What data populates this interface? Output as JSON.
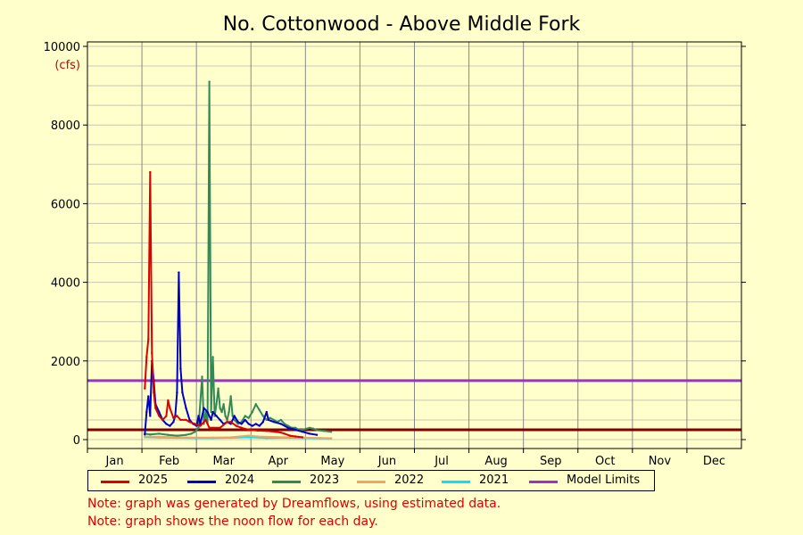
{
  "chart_data": {
    "type": "line",
    "title": "No. Cottonwood - Above Middle Fork",
    "y_unit": "(cfs)",
    "ylim": [
      0,
      10000
    ],
    "y_ticks": [
      0,
      2000,
      4000,
      6000,
      8000,
      10000
    ],
    "xlabel": "",
    "ylabel": "",
    "grid": true,
    "legend_placement": "bottom",
    "x_categories": [
      "Jan",
      "Feb",
      "Mar",
      "Apr",
      "May",
      "Jun",
      "Jul",
      "Aug",
      "Sep",
      "Oct",
      "Nov",
      "Dec"
    ],
    "x_unit": "day of year",
    "series": [
      {
        "name": "2025",
        "color": "#dd0000",
        "points": [
          [
            32,
            1300
          ],
          [
            33,
            2100
          ],
          [
            34,
            2550
          ],
          [
            35,
            6800
          ],
          [
            36,
            2200
          ],
          [
            37,
            1200
          ],
          [
            38,
            800
          ],
          [
            40,
            600
          ],
          [
            42,
            500
          ],
          [
            44,
            600
          ],
          [
            45,
            1000
          ],
          [
            46,
            800
          ],
          [
            48,
            550
          ],
          [
            50,
            600
          ],
          [
            52,
            500
          ],
          [
            55,
            500
          ],
          [
            57,
            450
          ],
          [
            60,
            400
          ],
          [
            63,
            350
          ],
          [
            66,
            500
          ],
          [
            68,
            300
          ],
          [
            70,
            300
          ],
          [
            74,
            300
          ],
          [
            78,
            450
          ],
          [
            80,
            450
          ],
          [
            83,
            350
          ],
          [
            86,
            300
          ],
          [
            90,
            250
          ],
          [
            95,
            230
          ],
          [
            100,
            220
          ],
          [
            105,
            200
          ],
          [
            108,
            180
          ],
          [
            110,
            150
          ],
          [
            113,
            100
          ],
          [
            116,
            80
          ],
          [
            120,
            60
          ]
        ]
      },
      {
        "name": "2024",
        "color": "#0000cc",
        "points": [
          [
            32,
            130
          ],
          [
            33,
            700
          ],
          [
            34,
            1100
          ],
          [
            35,
            600
          ],
          [
            36,
            2000
          ],
          [
            37,
            1500
          ],
          [
            38,
            900
          ],
          [
            40,
            700
          ],
          [
            42,
            500
          ],
          [
            44,
            400
          ],
          [
            46,
            350
          ],
          [
            48,
            450
          ],
          [
            49,
            600
          ],
          [
            50,
            1200
          ],
          [
            51,
            4250
          ],
          [
            52,
            1800
          ],
          [
            53,
            1200
          ],
          [
            55,
            800
          ],
          [
            57,
            500
          ],
          [
            59,
            400
          ],
          [
            61,
            350
          ],
          [
            62,
            600
          ],
          [
            63,
            400
          ],
          [
            65,
            800
          ],
          [
            67,
            700
          ],
          [
            69,
            500
          ],
          [
            70,
            700
          ],
          [
            72,
            600
          ],
          [
            74,
            500
          ],
          [
            76,
            400
          ],
          [
            78,
            450
          ],
          [
            80,
            400
          ],
          [
            82,
            600
          ],
          [
            84,
            450
          ],
          [
            86,
            400
          ],
          [
            88,
            500
          ],
          [
            90,
            400
          ],
          [
            92,
            350
          ],
          [
            94,
            400
          ],
          [
            96,
            350
          ],
          [
            98,
            450
          ],
          [
            100,
            700
          ],
          [
            101,
            500
          ],
          [
            104,
            450
          ],
          [
            108,
            400
          ],
          [
            112,
            300
          ],
          [
            116,
            250
          ],
          [
            120,
            200
          ],
          [
            124,
            150
          ],
          [
            128,
            120
          ]
        ]
      },
      {
        "name": "2023",
        "color": "#2e8b57",
        "points": [
          [
            32,
            150
          ],
          [
            35,
            130
          ],
          [
            40,
            150
          ],
          [
            45,
            120
          ],
          [
            50,
            100
          ],
          [
            55,
            120
          ],
          [
            58,
            150
          ],
          [
            60,
            200
          ],
          [
            62,
            300
          ],
          [
            64,
            1600
          ],
          [
            65,
            400
          ],
          [
            66,
            700
          ],
          [
            67,
            400
          ],
          [
            68,
            9100
          ],
          [
            69,
            700
          ],
          [
            70,
            2100
          ],
          [
            71,
            600
          ],
          [
            72,
            900
          ],
          [
            73,
            1300
          ],
          [
            74,
            800
          ],
          [
            75,
            700
          ],
          [
            76,
            900
          ],
          [
            77,
            600
          ],
          [
            78,
            500
          ],
          [
            79,
            700
          ],
          [
            80,
            1100
          ],
          [
            81,
            600
          ],
          [
            82,
            500
          ],
          [
            84,
            400
          ],
          [
            86,
            450
          ],
          [
            88,
            600
          ],
          [
            90,
            550
          ],
          [
            92,
            700
          ],
          [
            94,
            900
          ],
          [
            96,
            750
          ],
          [
            98,
            600
          ],
          [
            100,
            500
          ],
          [
            102,
            550
          ],
          [
            104,
            500
          ],
          [
            106,
            450
          ],
          [
            108,
            500
          ],
          [
            110,
            400
          ],
          [
            112,
            350
          ],
          [
            114,
            300
          ],
          [
            116,
            300
          ],
          [
            118,
            250
          ],
          [
            120,
            250
          ],
          [
            124,
            300
          ],
          [
            126,
            280
          ],
          [
            128,
            240
          ],
          [
            132,
            220
          ],
          [
            136,
            200
          ]
        ]
      },
      {
        "name": "2022",
        "color": "#f4a460",
        "points": [
          [
            32,
            80
          ],
          [
            40,
            70
          ],
          [
            50,
            60
          ],
          [
            60,
            50
          ],
          [
            70,
            50
          ],
          [
            80,
            60
          ],
          [
            90,
            100
          ],
          [
            95,
            80
          ],
          [
            100,
            70
          ],
          [
            110,
            60
          ],
          [
            120,
            50
          ],
          [
            130,
            40
          ],
          [
            136,
            35
          ]
        ]
      },
      {
        "name": "2021",
        "color": "#00e5ff",
        "points": [
          [
            32,
            60
          ],
          [
            40,
            50
          ],
          [
            50,
            45
          ],
          [
            60,
            40
          ],
          [
            70,
            40
          ],
          [
            80,
            45
          ],
          [
            90,
            60
          ],
          [
            100,
            40
          ],
          [
            110,
            45
          ],
          [
            120,
            40
          ],
          [
            130,
            35
          ],
          [
            136,
            30
          ]
        ]
      },
      {
        "name": "Model Limits",
        "color": "#9933cc",
        "hlines": [
          1500
        ],
        "lower_color": "#800000",
        "lower_hlines": [
          250
        ]
      }
    ]
  },
  "notes": [
    "Note: graph was generated by Dreamflows, using estimated data.",
    "Note: graph shows the noon flow for each day."
  ]
}
